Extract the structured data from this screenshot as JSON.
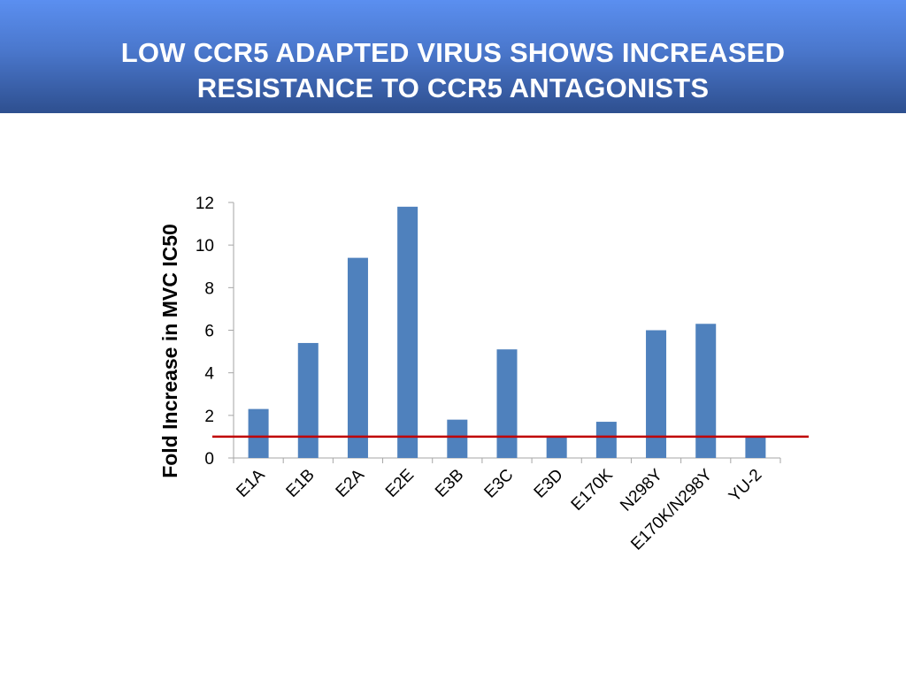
{
  "slide": {
    "title_line1": "LOW CCR5 ADAPTED VIRUS SHOWS INCREASED",
    "title_line2": "RESISTANCE TO CCR5 ANTAGONISTS"
  },
  "colors": {
    "bar": "#4f81bd",
    "reference_line": "#c00000",
    "axis": "#a6a6a6"
  },
  "chart_data": {
    "type": "bar",
    "title": "",
    "xlabel": "",
    "ylabel": "Fold Increase in MVC IC50",
    "categories": [
      "E1A",
      "E1B",
      "E2A",
      "E2E",
      "E3B",
      "E3C",
      "E3D",
      "E170K",
      "N298Y",
      "E170K/N298Y",
      "YU-2"
    ],
    "values": [
      2.3,
      5.4,
      9.4,
      11.8,
      1.8,
      5.1,
      1.0,
      1.7,
      6.0,
      6.3,
      1.0
    ],
    "ylim": [
      0,
      12
    ],
    "yticks": [
      0,
      2,
      4,
      6,
      8,
      10,
      12
    ],
    "reference_line": 1,
    "grid": false,
    "legend": "none"
  }
}
